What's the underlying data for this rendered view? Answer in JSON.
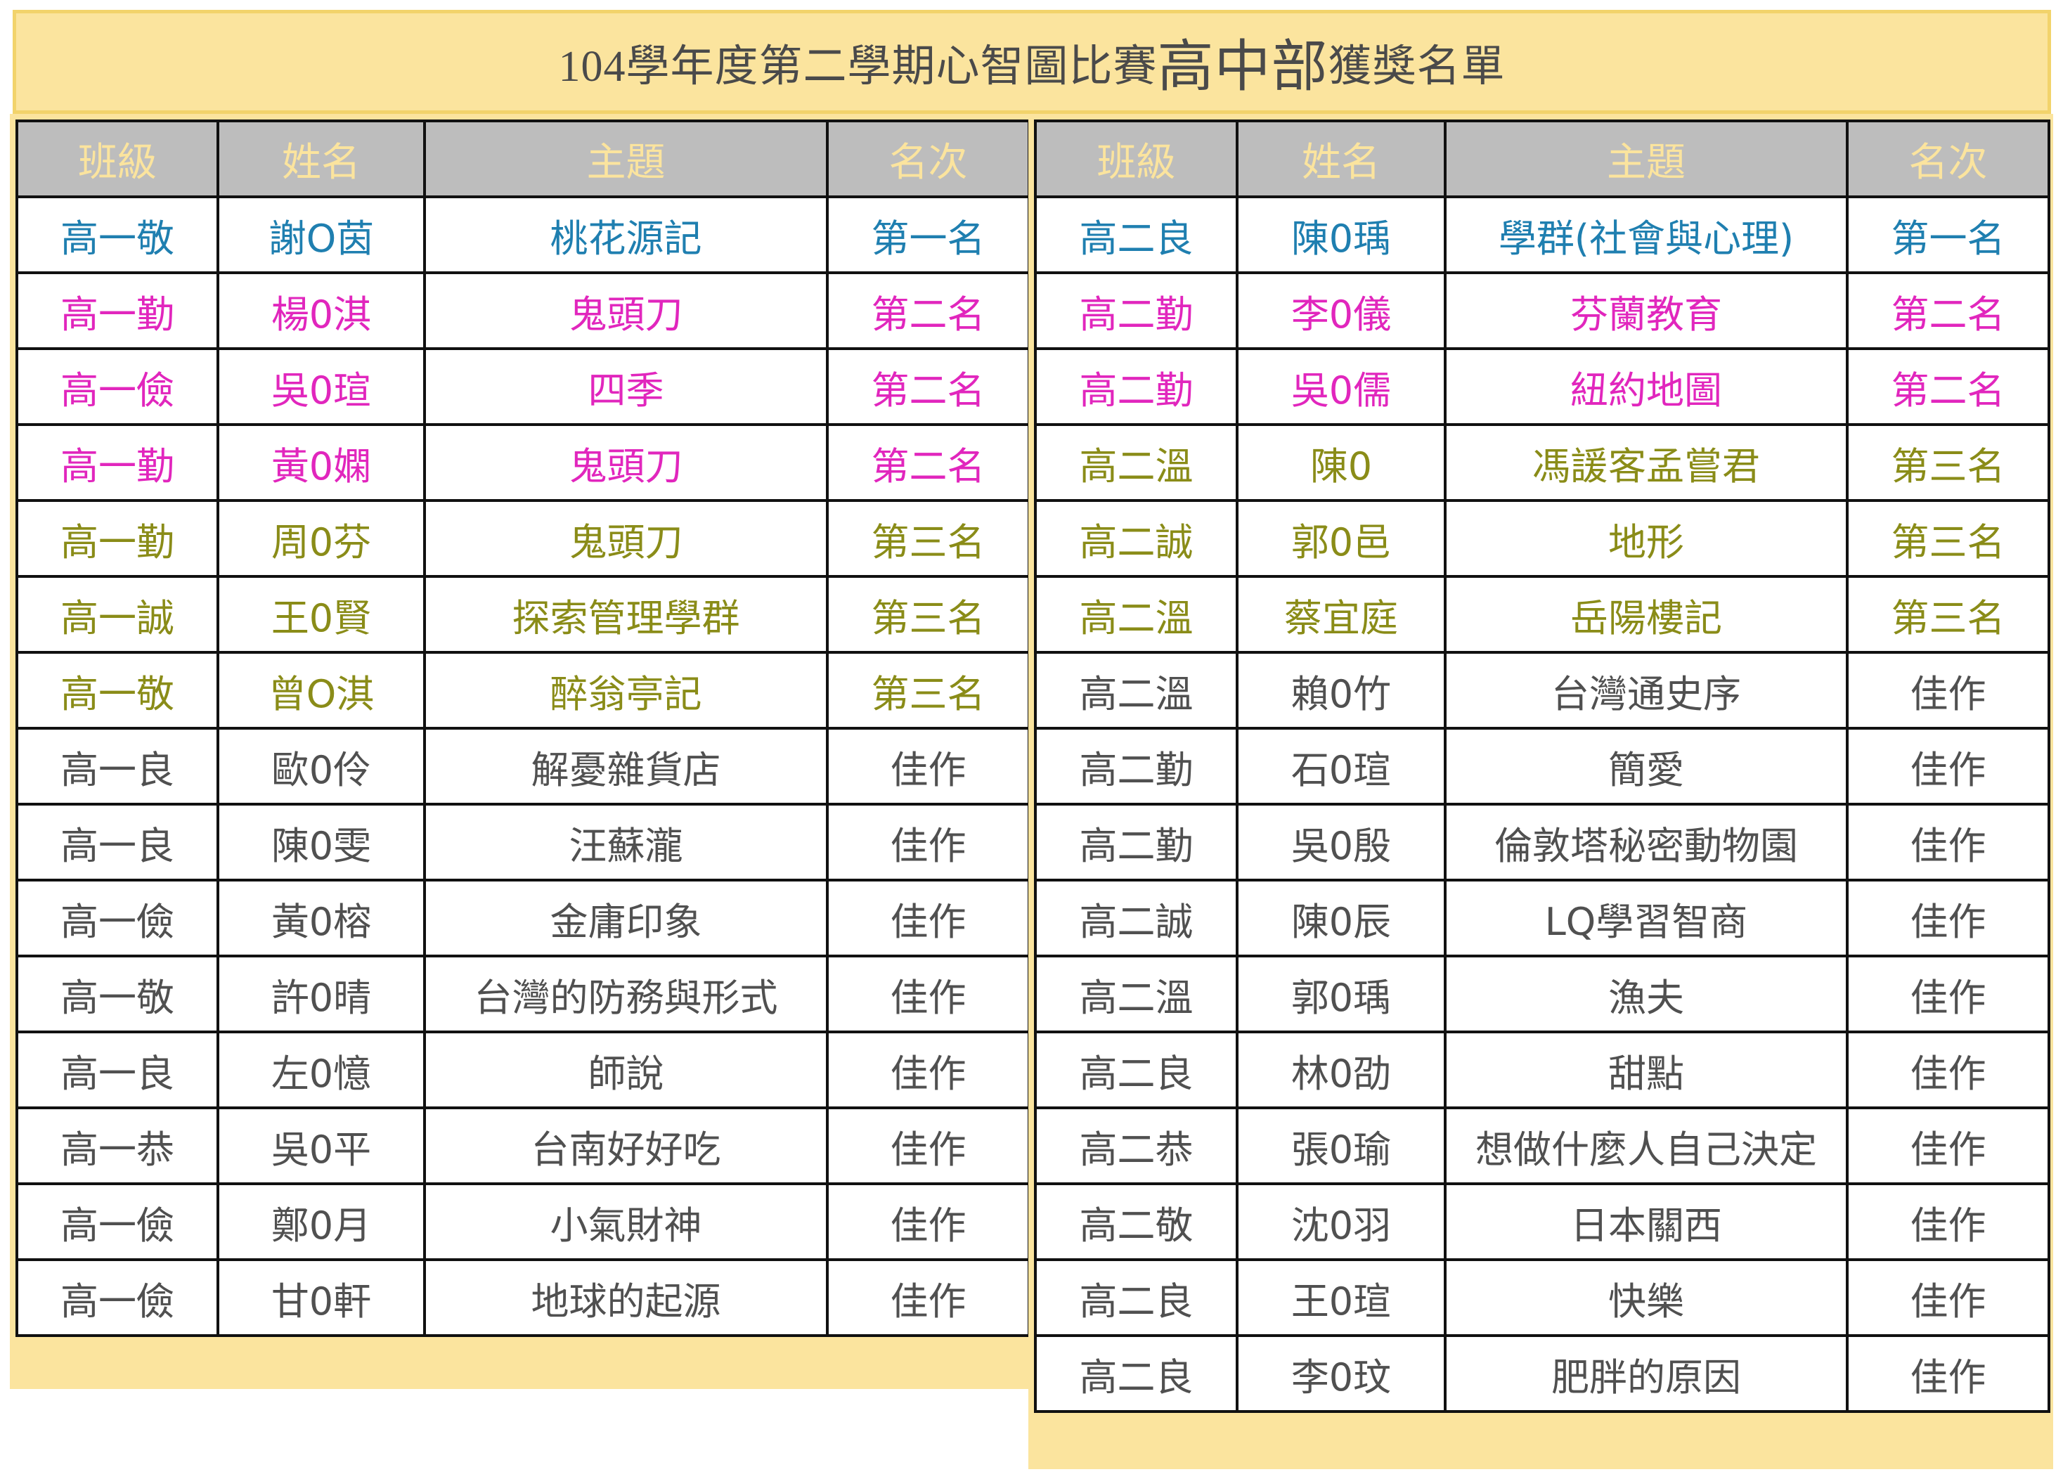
{
  "title": {
    "prefix": "104學年度第二學期心智圖比賽",
    "highlight": "高中部",
    "suffix": "獲獎名單"
  },
  "headers": [
    "班級",
    "姓名",
    "主題",
    "名次"
  ],
  "colors": {
    "first": "#1f7fb0",
    "second": "#e126bd",
    "third": "#8a8c18",
    "honorable": "#505050",
    "header_bg": "#bdbdbd",
    "header_text": "#fbe49e",
    "frame": "#fbe49e"
  },
  "left_table": [
    {
      "class": "高一敬",
      "name": "謝O茵",
      "topic": "桃花源記",
      "rank": "第一名",
      "tier": "blue"
    },
    {
      "class": "高一勤",
      "name": "楊0淇",
      "topic": "鬼頭刀",
      "rank": "第二名",
      "tier": "mag"
    },
    {
      "class": "高一儉",
      "name": "吳0瑄",
      "topic": "四季",
      "rank": "第二名",
      "tier": "mag"
    },
    {
      "class": "高一勤",
      "name": "黃0嫻",
      "topic": "鬼頭刀",
      "rank": "第二名",
      "tier": "mag"
    },
    {
      "class": "高一勤",
      "name": "周0芬",
      "topic": "鬼頭刀",
      "rank": "第三名",
      "tier": "olive"
    },
    {
      "class": "高一誠",
      "name": "王0賢",
      "topic": "探索管理學群",
      "rank": "第三名",
      "tier": "olive"
    },
    {
      "class": "高一敬",
      "name": "曾O淇",
      "topic": "醉翁亭記",
      "rank": "第三名",
      "tier": "olive"
    },
    {
      "class": "高一良",
      "name": "歐0伶",
      "topic": "解憂雜貨店",
      "rank": "佳作",
      "tier": "gray"
    },
    {
      "class": "高一良",
      "name": "陳0雯",
      "topic": "汪蘇瀧",
      "rank": "佳作",
      "tier": "gray"
    },
    {
      "class": "高一儉",
      "name": "黃0榕",
      "topic": "金庸印象",
      "rank": "佳作",
      "tier": "gray"
    },
    {
      "class": "高一敬",
      "name": "許0晴",
      "topic": "台灣的防務與形式",
      "rank": "佳作",
      "tier": "gray"
    },
    {
      "class": "高一良",
      "name": "左0憶",
      "topic": "師說",
      "rank": "佳作",
      "tier": "gray"
    },
    {
      "class": "高一恭",
      "name": "吳0平",
      "topic": "台南好好吃",
      "rank": "佳作",
      "tier": "gray"
    },
    {
      "class": "高一儉",
      "name": "鄭0月",
      "topic": "小氣財神",
      "rank": "佳作",
      "tier": "gray"
    },
    {
      "class": "高一儉",
      "name": "甘0軒",
      "topic": "地球的起源",
      "rank": "佳作",
      "tier": "gray"
    }
  ],
  "right_table": [
    {
      "class": "高二良",
      "name": "陳0瑀",
      "topic": "學群(社會與心理)",
      "rank": "第一名",
      "tier": "blue"
    },
    {
      "class": "高二勤",
      "name": "李0儀",
      "topic": "芬蘭教育",
      "rank": "第二名",
      "tier": "mag"
    },
    {
      "class": "高二勤",
      "name": "吳0儒",
      "topic": "紐約地圖",
      "rank": "第二名",
      "tier": "mag"
    },
    {
      "class": "高二溫",
      "name": "陳0",
      "topic": "馮諼客孟嘗君",
      "rank": "第三名",
      "tier": "olive"
    },
    {
      "class": "高二誠",
      "name": "郭0邑",
      "topic": "地形",
      "rank": "第三名",
      "tier": "olive"
    },
    {
      "class": "高二溫",
      "name": "蔡宜庭",
      "topic": "岳陽樓記",
      "rank": "第三名",
      "tier": "olive"
    },
    {
      "class": "高二溫",
      "name": "賴0竹",
      "topic": "台灣通史序",
      "rank": "佳作",
      "tier": "gray"
    },
    {
      "class": "高二勤",
      "name": "石0瑄",
      "topic": "簡愛",
      "rank": "佳作",
      "tier": "gray"
    },
    {
      "class": "高二勤",
      "name": "吳0殷",
      "topic": "倫敦塔秘密動物園",
      "rank": "佳作",
      "tier": "gray"
    },
    {
      "class": "高二誠",
      "name": "陳0辰",
      "topic": "LQ學習智商",
      "rank": "佳作",
      "tier": "gray"
    },
    {
      "class": "高二溫",
      "name": "郭0瑀",
      "topic": "漁夫",
      "rank": "佳作",
      "tier": "gray"
    },
    {
      "class": "高二良",
      "name": "林0劭",
      "topic": "甜點",
      "rank": "佳作",
      "tier": "gray"
    },
    {
      "class": "高二恭",
      "name": "張0瑜",
      "topic": "想做什麼人自己決定",
      "rank": "佳作",
      "tier": "gray"
    },
    {
      "class": "高二敬",
      "name": "沈0羽",
      "topic": "日本關西",
      "rank": "佳作",
      "tier": "gray"
    },
    {
      "class": "高二良",
      "name": "王0瑄",
      "topic": "快樂",
      "rank": "佳作",
      "tier": "gray"
    },
    {
      "class": "高二良",
      "name": "李0玟",
      "topic": "肥胖的原因",
      "rank": "佳作",
      "tier": "gray"
    }
  ]
}
